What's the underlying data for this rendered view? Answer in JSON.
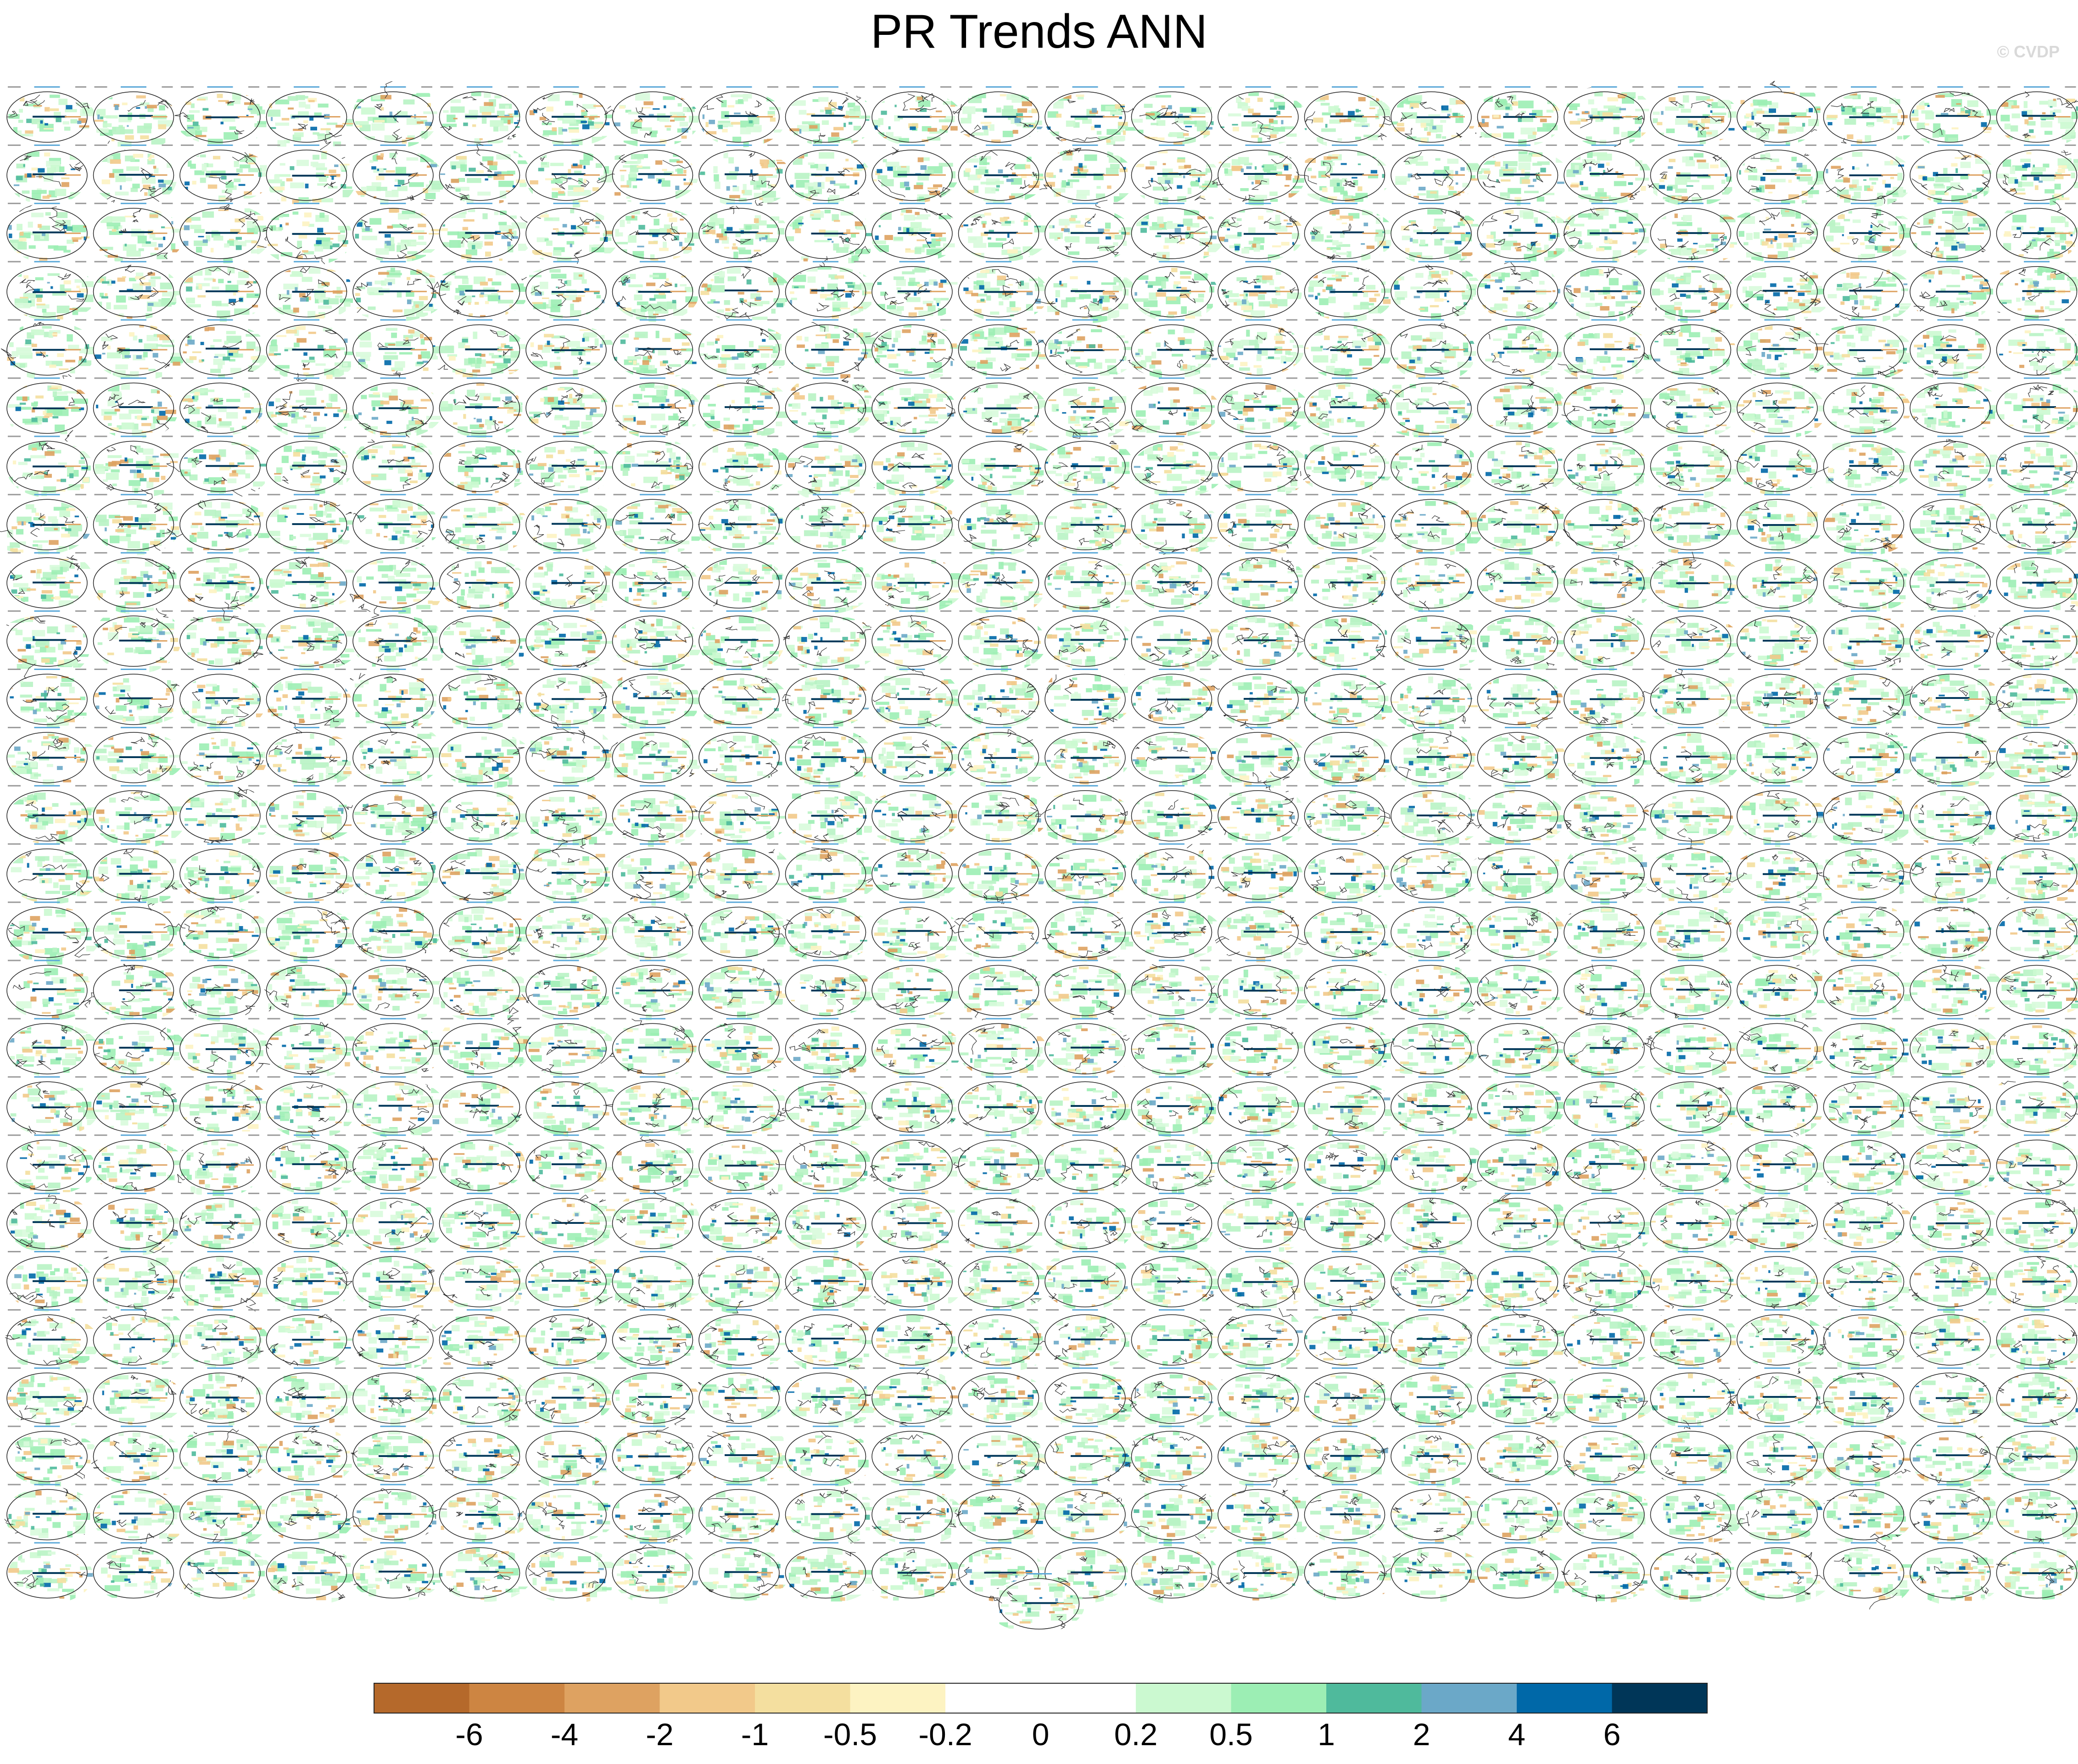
{
  "title": "PR Trends ANN",
  "watermark": "© CVDP",
  "chart_data": {
    "type": "heatmap",
    "title": "PR Trends ANN",
    "layout": "grid of global trend maps, 24 columns x 26 rows, plus one summary map centered below",
    "grid_columns": 24,
    "grid_rows": 26,
    "extra_summary_panel": true,
    "colorbar": {
      "orientation": "horizontal",
      "placement": "bottom",
      "tick_labels": [
        "-6",
        "-4",
        "-2",
        "-1",
        "-0.5",
        "-0.2",
        "0",
        "0.2",
        "0.5",
        "1",
        "2",
        "4",
        "6"
      ],
      "colors": [
        "#b5692b",
        "#cd8542",
        "#dea261",
        "#f2c98a",
        "#f4df9f",
        "#fdf3c2",
        "#ffffff",
        "#ffffff",
        "#cbf9d0",
        "#9ceeb4",
        "#4fba9c",
        "#6ba8c8",
        "#0068a8",
        "#003658"
      ]
    }
  }
}
